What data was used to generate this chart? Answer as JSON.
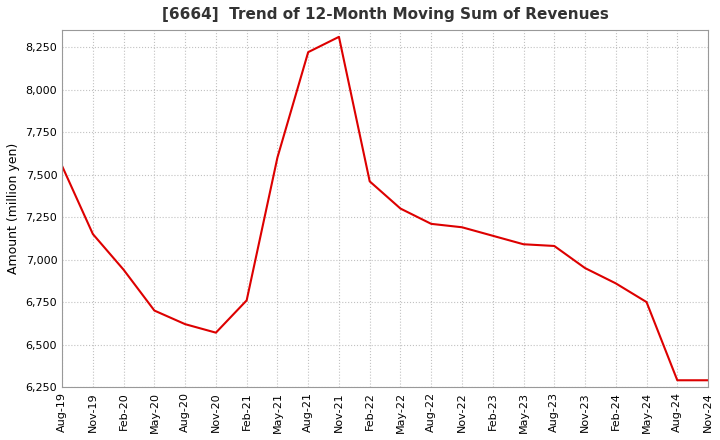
{
  "title": "[6664]  Trend of 12-Month Moving Sum of Revenues",
  "ylabel": "Amount (million yen)",
  "line_color": "#dd0000",
  "background_color": "#ffffff",
  "plot_bg_color": "#ffffff",
  "grid_color": "#bbbbbb",
  "ylim": [
    6250,
    8350
  ],
  "yticks": [
    6250,
    6500,
    6750,
    7000,
    7250,
    7500,
    7750,
    8000,
    8250
  ],
  "dates": [
    "Aug-19",
    "Nov-19",
    "Feb-20",
    "May-20",
    "Aug-20",
    "Nov-20",
    "Feb-21",
    "May-21",
    "Aug-21",
    "Nov-21",
    "Feb-22",
    "May-22",
    "Aug-22",
    "Nov-22",
    "Feb-23",
    "May-23",
    "Aug-23",
    "Nov-23",
    "Feb-24",
    "May-24",
    "Aug-24",
    "Nov-24"
  ],
  "values": [
    7550,
    7150,
    6940,
    6700,
    6620,
    6570,
    6760,
    7600,
    8220,
    8310,
    7460,
    7300,
    7210,
    7190,
    7140,
    7090,
    7080,
    6950,
    6860,
    6750,
    6290,
    6290
  ],
  "title_fontsize": 11,
  "ylabel_fontsize": 9,
  "tick_fontsize": 8
}
